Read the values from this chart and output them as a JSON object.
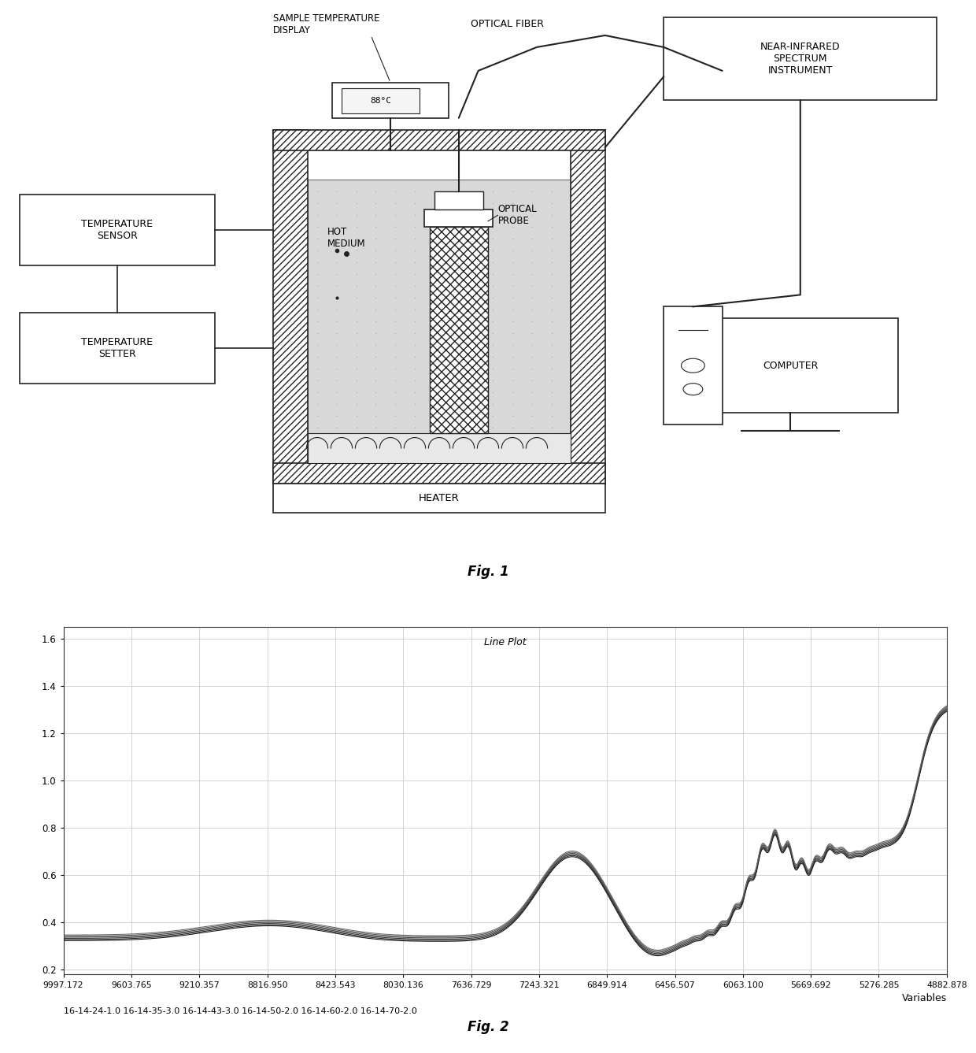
{
  "fig1_title": "Fig. 1",
  "fig2_title": "Fig. 2",
  "plot_title": "Line Plot",
  "x_label": "Variables",
  "x_ticks": [
    "9997.172",
    "9603.765",
    "9210.357",
    "8816.950",
    "8423.543",
    "8030.136",
    "7636.729",
    "7243.321",
    "6849.914",
    "6456.507",
    "6063.100",
    "5669.692",
    "5276.285",
    "4882.878"
  ],
  "legend_labels": [
    "16-14-24-1.0",
    "16-14-35-3.0",
    "16-14-43-3.0",
    "16-14-50-2.0",
    "16-14-60-2.0",
    "16-14-70-2.0"
  ],
  "y_ticks": [
    0.2,
    0.4,
    0.6,
    0.8,
    1.0,
    1.2,
    1.4,
    1.6
  ],
  "y_min": 0.18,
  "y_max": 1.65,
  "line_color": "#333333",
  "bg_color": "#ffffff",
  "grid_color": "#cccccc"
}
